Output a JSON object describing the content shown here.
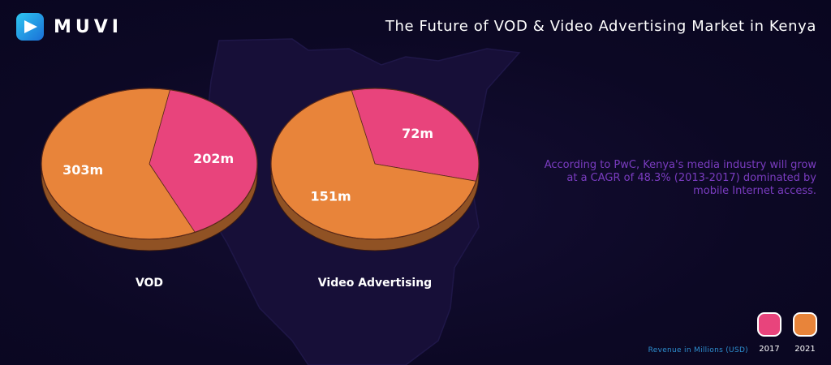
{
  "brand": {
    "name": "MUVI"
  },
  "header": {
    "title": "The Future of VOD & Video Advertising Market in Kenya"
  },
  "note": "According to PwC, Kenya's media industry will grow at a CAGR of 48.3% (2013-2017) dominated by mobile Internet access.",
  "footer": {
    "revenue_note": "Revenue in Millions (USD)"
  },
  "colors": {
    "y2017": "#e8447c",
    "y2021": "#e8843a",
    "accent_text": "#7a3cc0",
    "background": "#0c0824"
  },
  "chart_data": [
    {
      "type": "pie",
      "title": "VOD",
      "labels": [
        "2017",
        "2021"
      ],
      "values": [
        202,
        303
      ],
      "value_labels": [
        "202m",
        "303m"
      ]
    },
    {
      "type": "pie",
      "title": "Video Advertising",
      "labels": [
        "2017",
        "2021"
      ],
      "values": [
        72,
        151
      ],
      "value_labels": [
        "72m",
        "151m"
      ]
    }
  ],
  "legend": [
    {
      "label": "2017",
      "color": "#e8447c"
    },
    {
      "label": "2021",
      "color": "#e8843a"
    }
  ]
}
